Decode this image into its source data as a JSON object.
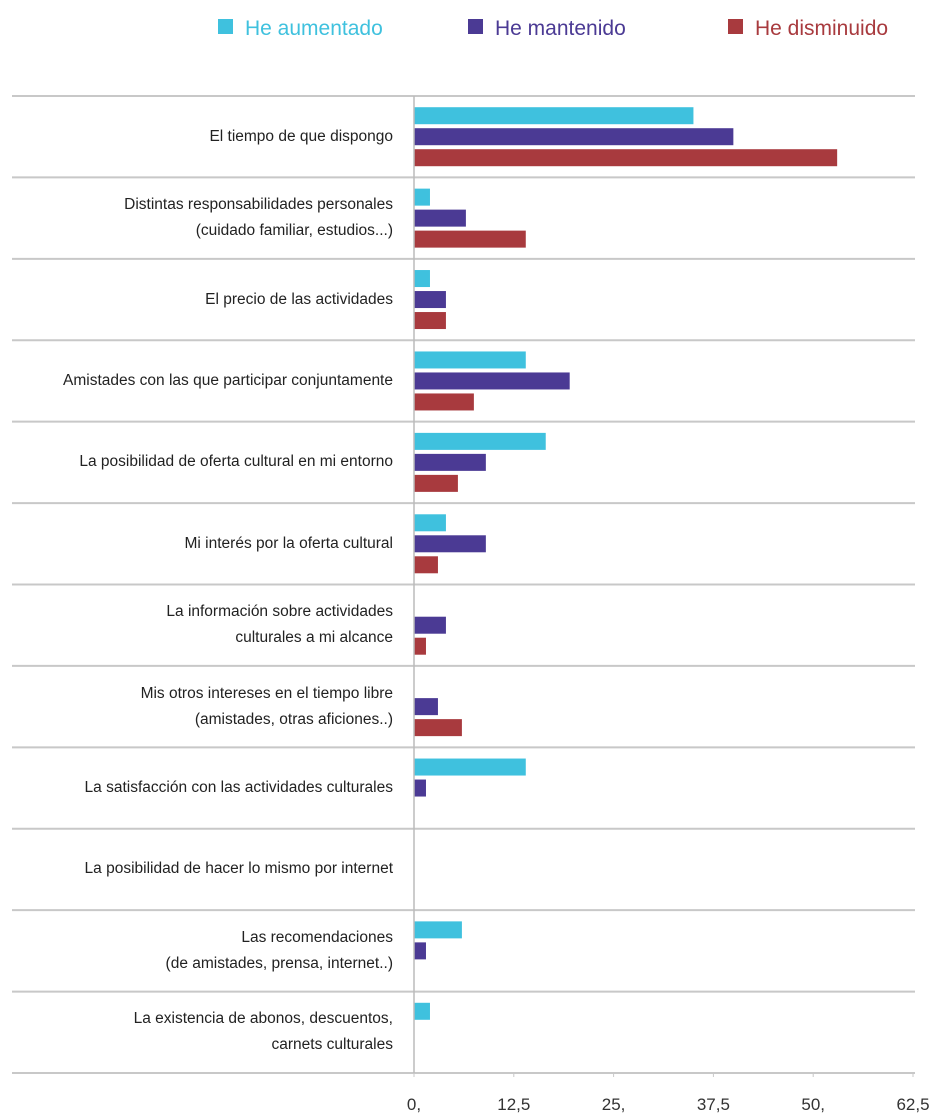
{
  "chart_data": {
    "type": "hbar",
    "categories": [
      "El tiempo de que dispongo",
      "Distintas responsabilidades personales\n(cuidado familiar, estudios...)",
      "El precio de las actividades",
      "Amistades con las que participar conjuntamente",
      "La posibilidad de oferta cultural en mi entorno",
      "Mi interés por la oferta cultural",
      "La información sobre actividades\nculturales a mi alcance",
      "Mis otros intereses en el tiempo libre\n(amistades, otras aficiones..)",
      "La satisfacción con las actividades culturales",
      "La posibilidad de hacer lo mismo por internet",
      "Las recomendaciones\n(de amistades, prensa, internet..)",
      "La existencia de abonos, descuentos,\ncarnets culturales"
    ],
    "series": [
      {
        "name": "He aumentado",
        "color": "#3fc1de",
        "values": [
          35,
          2,
          2,
          14,
          16.5,
          4,
          0,
          0,
          14,
          0,
          6,
          2
        ]
      },
      {
        "name": "He mantenido",
        "color": "#4b3a94",
        "values": [
          40,
          6.5,
          4,
          19.5,
          9,
          9,
          4,
          3,
          1.5,
          0,
          1.5,
          0
        ]
      },
      {
        "name": "He disminuido",
        "color": "#a83a3e",
        "values": [
          53,
          14,
          4,
          7.5,
          5.5,
          3,
          1.5,
          6,
          0,
          0,
          0,
          0
        ]
      }
    ],
    "xlim": [
      0,
      62.5
    ],
    "xticks": [
      {
        "value": 0,
        "label": "0,"
      },
      {
        "value": 12.5,
        "label": "12,5"
      },
      {
        "value": 25,
        "label": "25,"
      },
      {
        "value": 37.5,
        "label": "37,5"
      },
      {
        "value": 50,
        "label": "50,"
      },
      {
        "value": 62.5,
        "label": "62,5"
      }
    ]
  }
}
